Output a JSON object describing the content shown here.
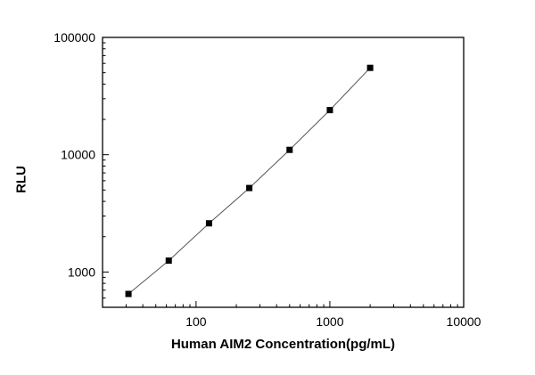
{
  "chart_data": {
    "type": "scatter",
    "title": "",
    "xlabel": "Human AIM2 Concentration(pg/mL)",
    "ylabel": "RLU",
    "x_scale": "log",
    "y_scale": "log",
    "xlim": [
      20,
      10000
    ],
    "ylim": [
      500,
      100000
    ],
    "x_ticks": [
      100,
      1000,
      10000
    ],
    "x_tick_labels": [
      "100",
      "1000",
      "10000"
    ],
    "y_ticks": [
      1000,
      10000,
      100000
    ],
    "y_tick_labels": [
      "1000",
      "10000",
      "100000"
    ],
    "grid": false,
    "legend": false,
    "marker": "square",
    "marker_color": "#000000",
    "line_color": "#555555",
    "frame_color": "#000000",
    "background_color": "#ffffff",
    "points": [
      {
        "x": 31.25,
        "y": 650
      },
      {
        "x": 62.5,
        "y": 1250
      },
      {
        "x": 125,
        "y": 2600
      },
      {
        "x": 250,
        "y": 5200
      },
      {
        "x": 500,
        "y": 11000
      },
      {
        "x": 1000,
        "y": 24000
      },
      {
        "x": 2000,
        "y": 55000
      }
    ]
  }
}
